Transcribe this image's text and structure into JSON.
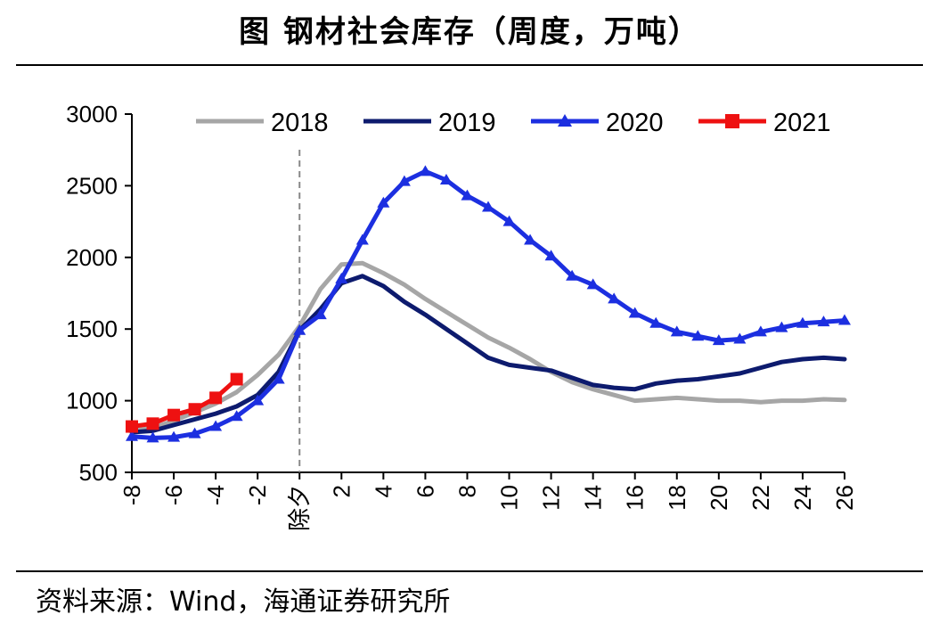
{
  "title": "图 钢材社会库存（周度，万吨）",
  "source": "资料来源：Wind，海通证券研究所",
  "chart_data": {
    "type": "line",
    "ylim": [
      500,
      3000
    ],
    "yticks": [
      500,
      1000,
      1500,
      2000,
      2500,
      3000
    ],
    "xlim": [
      -8,
      26
    ],
    "xticks": [
      -8,
      -6,
      -4,
      -2,
      0,
      2,
      4,
      6,
      8,
      10,
      12,
      14,
      16,
      18,
      20,
      22,
      24,
      26
    ],
    "xticklabels": [
      "-8",
      "-6",
      "-4",
      "-2",
      "除夕",
      "2",
      "4",
      "6",
      "8",
      "10",
      "12",
      "14",
      "16",
      "18",
      "20",
      "22",
      "24",
      "26"
    ],
    "vline_at": 0,
    "legend_position": "top",
    "series": [
      {
        "name": "2018",
        "color": "#a6a6a6",
        "marker": "none",
        "x": [
          -8,
          -7,
          -6,
          -5,
          -4,
          -3,
          -2,
          -1,
          0,
          1,
          2,
          3,
          4,
          5,
          6,
          7,
          8,
          9,
          10,
          11,
          12,
          13,
          14,
          15,
          16,
          17,
          18,
          19,
          20,
          21,
          22,
          23,
          24,
          25,
          26
        ],
        "y": [
          790,
          810,
          860,
          920,
          980,
          1060,
          1180,
          1320,
          1520,
          1780,
          1950,
          1960,
          1890,
          1810,
          1710,
          1620,
          1530,
          1440,
          1370,
          1290,
          1200,
          1130,
          1080,
          1040,
          1000,
          1010,
          1020,
          1010,
          1000,
          1000,
          990,
          1000,
          1000,
          1010,
          1005
        ]
      },
      {
        "name": "2019",
        "color": "#0d1b6e",
        "marker": "none",
        "x": [
          -8,
          -7,
          -6,
          -5,
          -4,
          -3,
          -2,
          -1,
          0,
          1,
          2,
          3,
          4,
          5,
          6,
          7,
          8,
          9,
          10,
          11,
          12,
          13,
          14,
          15,
          16,
          17,
          18,
          19,
          20,
          21,
          22,
          23,
          24,
          25,
          26
        ],
        "y": [
          780,
          790,
          830,
          870,
          910,
          960,
          1040,
          1200,
          1490,
          1640,
          1820,
          1870,
          1800,
          1690,
          1600,
          1500,
          1400,
          1300,
          1250,
          1230,
          1210,
          1160,
          1110,
          1090,
          1080,
          1120,
          1140,
          1150,
          1170,
          1190,
          1230,
          1270,
          1290,
          1300,
          1290
        ]
      },
      {
        "name": "2020",
        "color": "#1c2fe0",
        "marker": "triangle",
        "x": [
          -8,
          -7,
          -6,
          -5,
          -4,
          -3,
          -2,
          -1,
          0,
          1,
          2,
          3,
          4,
          5,
          6,
          7,
          8,
          9,
          10,
          11,
          12,
          13,
          14,
          15,
          16,
          17,
          18,
          19,
          20,
          21,
          22,
          23,
          24,
          25,
          26
        ],
        "y": [
          750,
          740,
          745,
          770,
          820,
          890,
          1000,
          1150,
          1490,
          1600,
          1850,
          2120,
          2380,
          2530,
          2600,
          2540,
          2430,
          2350,
          2250,
          2120,
          2010,
          1870,
          1810,
          1710,
          1610,
          1540,
          1480,
          1450,
          1420,
          1430,
          1480,
          1510,
          1540,
          1550,
          1560
        ]
      },
      {
        "name": "2021",
        "color": "#ee1111",
        "marker": "square",
        "x": [
          -8,
          -7,
          -6,
          -5,
          -4,
          -3
        ],
        "y": [
          820,
          840,
          900,
          940,
          1020,
          1150
        ]
      }
    ]
  }
}
